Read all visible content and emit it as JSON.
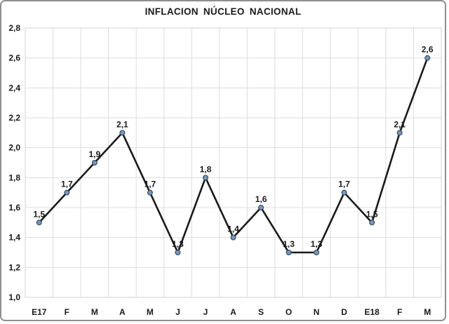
{
  "chart_data": {
    "type": "line",
    "title": "INFLACION NÚCLEO NACIONAL",
    "categories": [
      "E17",
      "F",
      "M",
      "A",
      "M",
      "J",
      "J",
      "A",
      "S",
      "O",
      "N",
      "D",
      "E18",
      "F",
      "M"
    ],
    "series": [
      {
        "name": "Inflacion nucleo nacional",
        "values": [
          1.5,
          1.7,
          1.9,
          2.1,
          1.7,
          1.3,
          1.8,
          1.4,
          1.6,
          1.3,
          1.3,
          1.7,
          1.5,
          2.1,
          2.6
        ],
        "point_labels": [
          "1,5",
          "1,7",
          "1,9",
          "2,1",
          "1,7",
          "1,3",
          "1,8",
          "1,4",
          "1,6",
          "1,3",
          "1,3",
          "1,7",
          "1,5",
          "2,1",
          "2,6"
        ]
      }
    ],
    "xlabel": "",
    "ylabel": "",
    "y_axis": {
      "min": 1.0,
      "max": 2.8,
      "step": 0.2,
      "tick_labels": [
        "1,0",
        "1,2",
        "1,4",
        "1,6",
        "1,8",
        "2,0",
        "2,2",
        "2,4",
        "2,6",
        "2,8"
      ]
    },
    "grid": "both",
    "legend_position": "none",
    "colors": {
      "line": "#1b1b1b",
      "marker_fill": "#7d96b4",
      "marker_stroke": "#2f4d6e",
      "gridline": "#dcdcdc",
      "text": "#1a1a1a",
      "frame_border": "#8f8f8f"
    }
  }
}
